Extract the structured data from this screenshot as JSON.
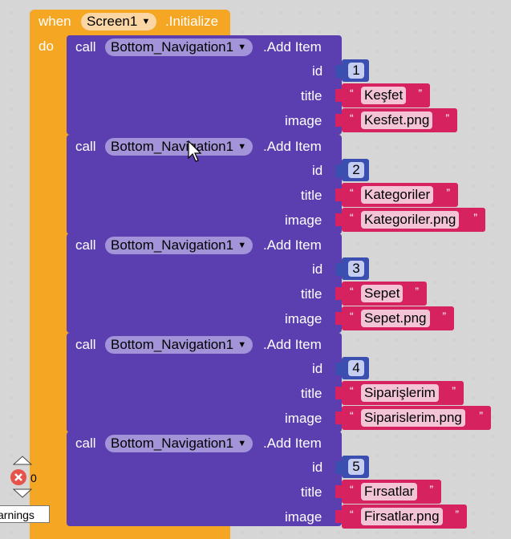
{
  "event": {
    "when": "when",
    "component": "Screen1",
    "event_name": ".Initialize",
    "do": "do"
  },
  "calls": [
    {
      "call": "call",
      "component": "Bottom_Navigation1",
      "method": ".Add Item",
      "id_label": "id",
      "id": "1",
      "title_label": "title",
      "title": "Keşfet",
      "image_label": "image",
      "image": "Kesfet.png"
    },
    {
      "call": "call",
      "component": "Bottom_Navigation1",
      "method": ".Add Item",
      "id_label": "id",
      "id": "2",
      "title_label": "title",
      "title": "Kategoriler",
      "image_label": "image",
      "image": "Kategoriler.png"
    },
    {
      "call": "call",
      "component": "Bottom_Navigation1",
      "method": ".Add Item",
      "id_label": "id",
      "id": "3",
      "title_label": "title",
      "title": "Sepet",
      "image_label": "image",
      "image": "Sepet.png"
    },
    {
      "call": "call",
      "component": "Bottom_Navigation1",
      "method": ".Add Item",
      "id_label": "id",
      "id": "4",
      "title_label": "title",
      "title": "Siparişlerim",
      "image_label": "image",
      "image": "Siparislerim.png"
    },
    {
      "call": "call",
      "component": "Bottom_Navigation1",
      "method": ".Add Item",
      "id_label": "id",
      "id": "5",
      "title_label": "title",
      "title": "Fırsatlar",
      "image_label": "image",
      "image": "Firsatlar.png"
    }
  ],
  "errors": {
    "count": "0"
  },
  "warnings": {
    "label": "arnings"
  },
  "colors": {
    "event": "#f5a623",
    "call": "#5b3fb0",
    "number": "#3a4fb0",
    "string": "#d6225e"
  }
}
